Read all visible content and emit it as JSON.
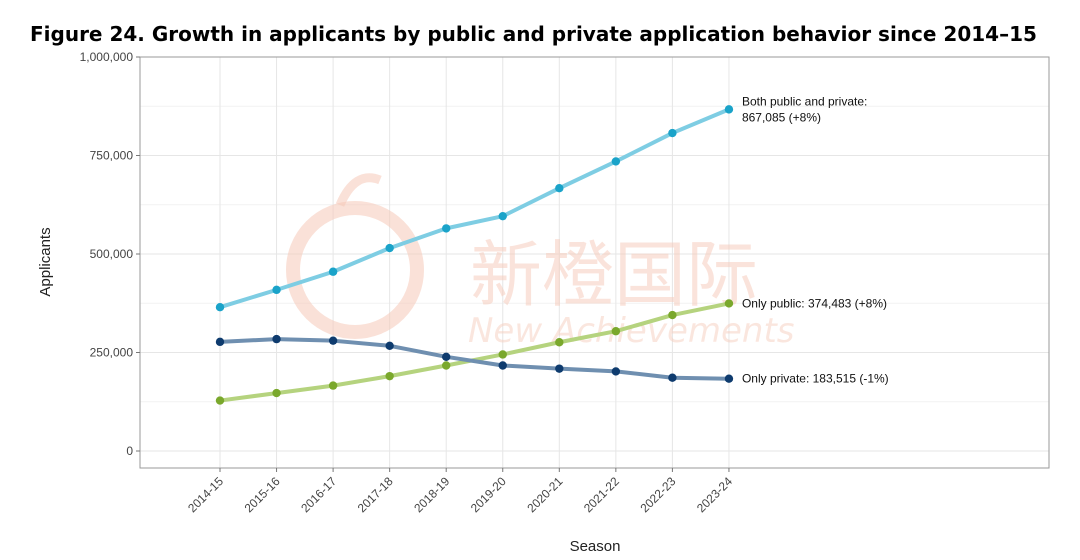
{
  "title": "Figure 24. Growth in applicants by public and private application behavior since 2014–15",
  "chart_data": {
    "type": "line",
    "xlabel": "Season",
    "ylabel": "Applicants",
    "categories": [
      "2014-15",
      "2015-16",
      "2016-17",
      "2017-18",
      "2018-19",
      "2019-20",
      "2020-21",
      "2021-22",
      "2022-23",
      "2023-24"
    ],
    "ylim": [
      0,
      1000000
    ],
    "yticks": [
      0,
      250000,
      500000,
      750000,
      1000000
    ],
    "ytick_labels": [
      "0",
      "250,000",
      "500,000",
      "750,000",
      "1,000,000"
    ],
    "grid": true,
    "series": [
      {
        "key": "both",
        "values": [
          365000,
          409000,
          455000,
          515000,
          565000,
          596000,
          667000,
          735000,
          807000,
          867085
        ],
        "line_color": "#7ecde3",
        "point_color": "#1aa3c9",
        "annotation": [
          "Both public and private:",
          "867,085 (+8%)"
        ]
      },
      {
        "key": "public",
        "values": [
          128000,
          147000,
          166000,
          190000,
          217000,
          245000,
          276000,
          304000,
          345000,
          374483
        ],
        "line_color": "#b5d37e",
        "point_color": "#7aa82c",
        "annotation": [
          "Only public: 374,483 (+8%)"
        ]
      },
      {
        "key": "private",
        "values": [
          277000,
          284000,
          280000,
          267000,
          239000,
          217000,
          209000,
          202000,
          186000,
          183515
        ],
        "line_color": "#6f8fb0",
        "point_color": "#0e3b6e",
        "annotation": [
          "Only private: 183,515 (-1%)"
        ]
      }
    ]
  },
  "watermark": {
    "cn": "新橙国际",
    "en": "New Achievements",
    "color": "#f6c9b8"
  }
}
